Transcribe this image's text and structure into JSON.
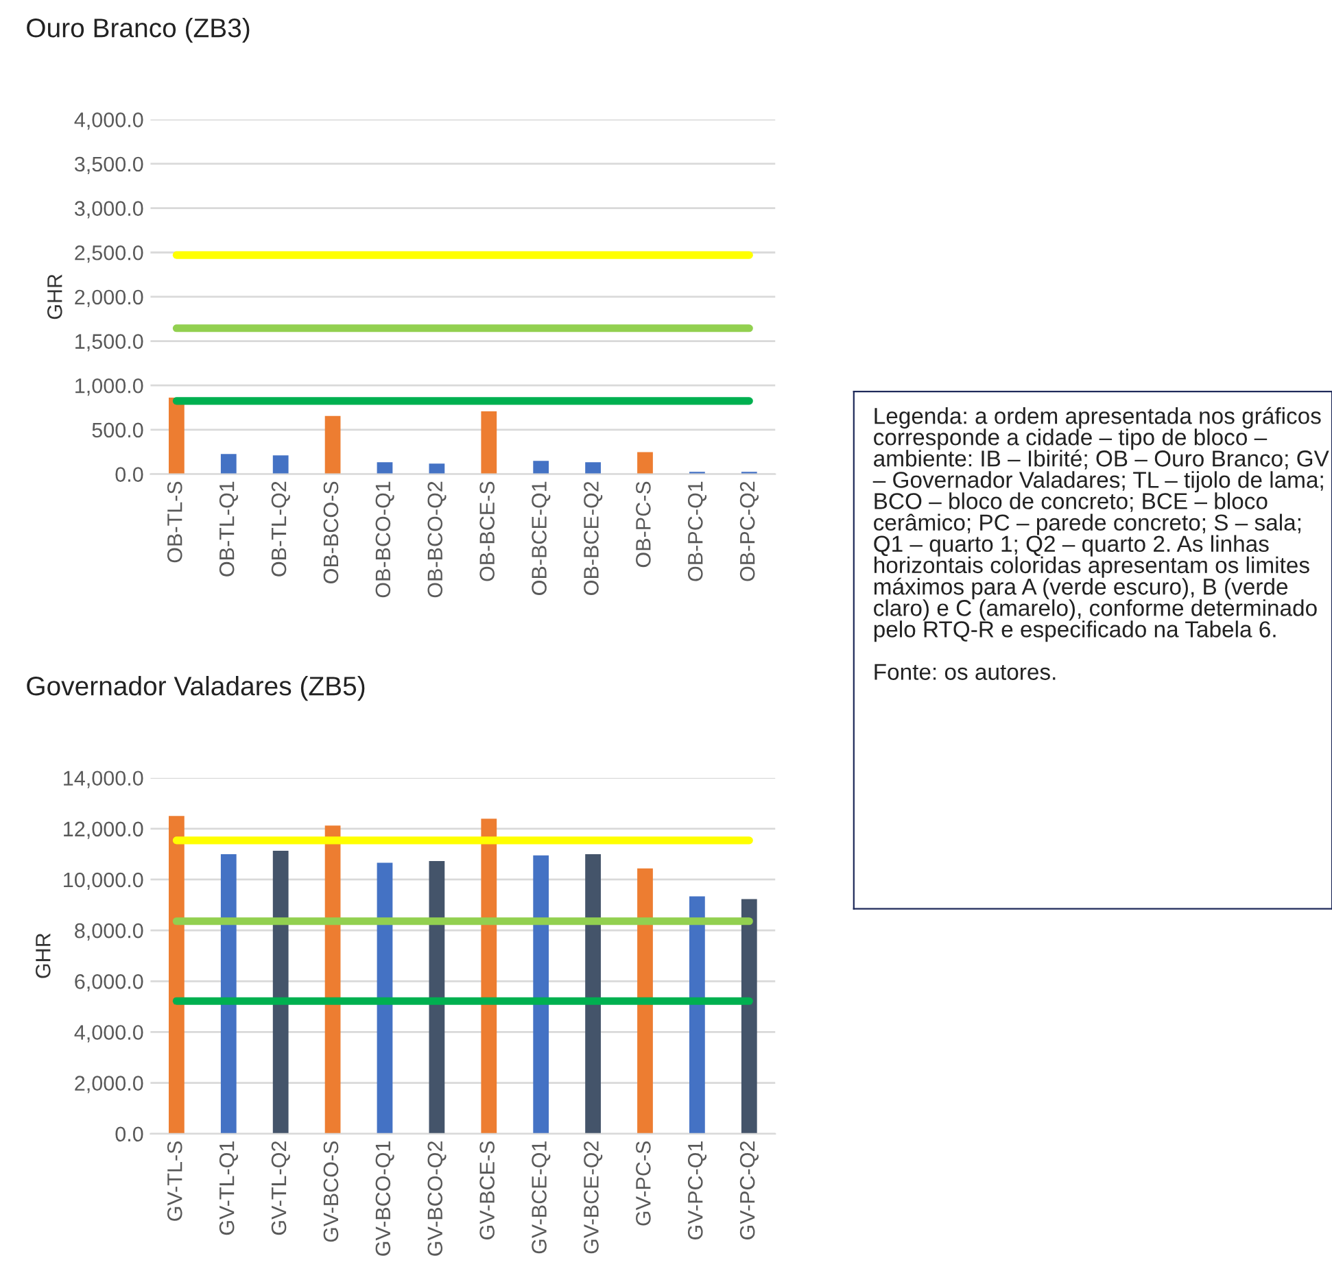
{
  "chart_data": [
    {
      "type": "bar",
      "title": "Ouro Branco (ZB3)",
      "ylabel": "GHR",
      "categories": [
        "OB-TL-S",
        "OB-TL-Q1",
        "OB-TL-Q2",
        "OB-BCO-S",
        "OB-BCO-Q1",
        "OB-BCO-Q2",
        "OB-BCE-S",
        "OB-BCE-Q1",
        "OB-BCE-Q2",
        "OB-PC-S",
        "OB-PC-Q1",
        "OB-PC-Q2"
      ],
      "values": [
        862,
        227,
        212,
        655,
        134,
        119,
        707,
        150,
        134,
        248,
        26,
        26
      ],
      "colors": [
        "#ed7d31",
        "#4472c4",
        "#4472c4",
        "#ed7d31",
        "#4472c4",
        "#4472c4",
        "#ed7d31",
        "#4472c4",
        "#4472c4",
        "#ed7d31",
        "#4472c4",
        "#4472c4"
      ],
      "ylim": [
        0,
        4000
      ],
      "yticks": [
        {
          "value": 0,
          "label": "0.0"
        },
        {
          "value": 500,
          "label": "500.0"
        },
        {
          "value": 1000,
          "label": "1,000.0"
        },
        {
          "value": 1500,
          "label": "1,500.0"
        },
        {
          "value": 2000,
          "label": "2,000.0"
        },
        {
          "value": 2500,
          "label": "2,500.0"
        },
        {
          "value": 3000,
          "label": "3,000.0"
        },
        {
          "value": 3500,
          "label": "3,500.0"
        },
        {
          "value": 4000,
          "label": "4,000.0"
        }
      ],
      "ref_lines": [
        {
          "axis": "y",
          "value": 2470,
          "color": "#ffff00"
        },
        {
          "axis": "y",
          "value": 1645,
          "color": "#92d050"
        },
        {
          "axis": "y",
          "value": 825,
          "color": "#00b050"
        }
      ],
      "grid": "y",
      "legend": false
    },
    {
      "type": "bar",
      "title": "Governador Valadares (ZB5)",
      "ylabel": "GHR",
      "categories": [
        "GV-TL-S",
        "GV-TL-Q1",
        "GV-TL-Q2",
        "GV-BCO-S",
        "GV-BCO-Q1",
        "GV-BCO-Q2",
        "GV-BCE-S",
        "GV-BCE-Q1",
        "GV-BCE-Q2",
        "GV-PC-S",
        "GV-PC-Q1",
        "GV-PC-Q2"
      ],
      "values": [
        12500,
        11000,
        11130,
        12120,
        10660,
        10730,
        12390,
        10950,
        11000,
        10440,
        9340,
        9230
      ],
      "colors": [
        "#ed7d31",
        "#4472c4",
        "#44546a",
        "#ed7d31",
        "#4472c4",
        "#44546a",
        "#ed7d31",
        "#4472c4",
        "#44546a",
        "#ed7d31",
        "#4472c4",
        "#44546a"
      ],
      "ylim": [
        0,
        14000
      ],
      "yticks": [
        {
          "value": 0,
          "label": "0.0"
        },
        {
          "value": 2000,
          "label": "2,000.0"
        },
        {
          "value": 4000,
          "label": "4,000.0"
        },
        {
          "value": 6000,
          "label": "6,000.0"
        },
        {
          "value": 8000,
          "label": "8,000.0"
        },
        {
          "value": 10000,
          "label": "10,000.0"
        },
        {
          "value": 12000,
          "label": "12,000.0"
        },
        {
          "value": 14000,
          "label": "14,000.0"
        }
      ],
      "ref_lines": [
        {
          "axis": "y",
          "value": 11540,
          "color": "#ffff00"
        },
        {
          "axis": "y",
          "value": 8360,
          "color": "#92d050"
        },
        {
          "axis": "y",
          "value": 5220,
          "color": "#00b050"
        }
      ],
      "grid": "y",
      "legend": false
    },
    {
      "type": "other",
      "annotations": [
        "Legenda: a ordem apresentada nos gráficos corresponde a cidade – tipo de bloco – ambiente: IB – Ibirité; OB – Ouro Branco; GV – Governador Valadares; TL – tijolo de lama; BCO – bloco de concreto; BCE – bloco cerâmico; PC – parede concreto; S – sala; Q1 – quarto 1; Q2 – quarto 2. As linhas horizontais coloridas apresentam os limites máximos para A (verde escuro), B (verde claro) e C (amarelo), conforme determinado pelo RTQ-R e especificado na Tabela 6.",
        "Fonte: os autores."
      ]
    }
  ]
}
